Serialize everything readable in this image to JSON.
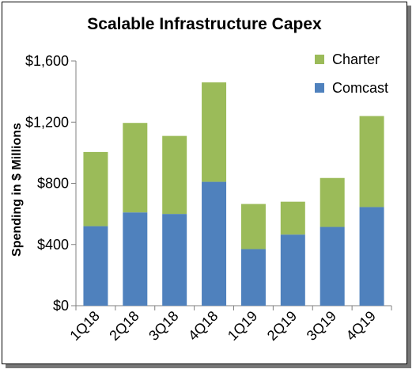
{
  "chart_data": {
    "type": "bar",
    "stacked": true,
    "title": "Scalable Infrastructure Capex",
    "xlabel": "",
    "ylabel": "Spending in $ Millions",
    "categories": [
      "1Q18",
      "2Q18",
      "3Q18",
      "4Q18",
      "1Q19",
      "2Q19",
      "3Q19",
      "4Q19"
    ],
    "series": [
      {
        "name": "Comcast",
        "color": "#4f81bd",
        "values": [
          520,
          610,
          600,
          810,
          370,
          465,
          515,
          645
        ]
      },
      {
        "name": "Charter",
        "color": "#9bbb59",
        "values": [
          485,
          585,
          510,
          650,
          295,
          215,
          320,
          595
        ]
      }
    ],
    "ylim": [
      0,
      1600
    ],
    "yticks": [
      0,
      400,
      800,
      1200,
      1600
    ],
    "ytick_labels": [
      "$0",
      "$400",
      "$800",
      "$1,200",
      "$1,600"
    ],
    "grid": false,
    "legend_position": "top-right",
    "legend_order": [
      "Charter",
      "Comcast"
    ]
  }
}
